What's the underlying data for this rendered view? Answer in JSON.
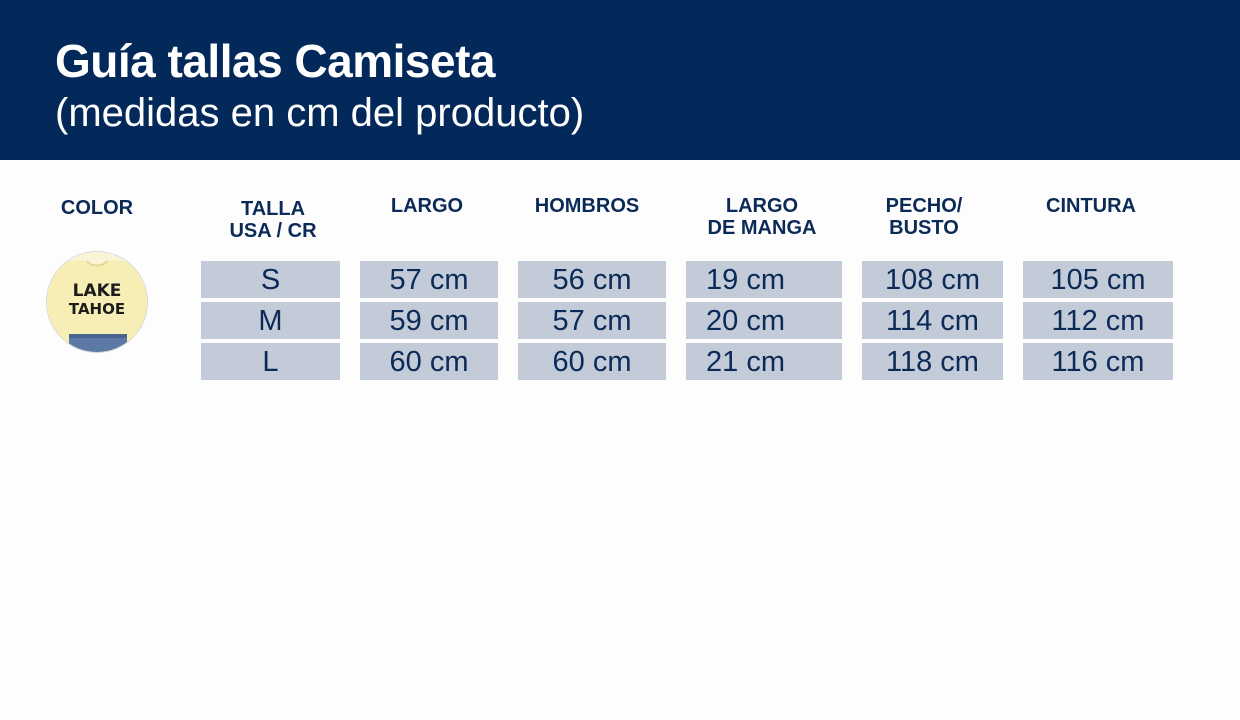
{
  "header": {
    "title": "Guía tallas Camiseta",
    "subtitle": "(medidas en cm del producto)"
  },
  "columns": {
    "color": "COLOR",
    "talla": [
      "TALLA",
      "USA / CR"
    ],
    "largo": "LARGO",
    "hombros": "HOMBROS",
    "largo_manga": [
      "LARGO",
      "DE MANGA"
    ],
    "pecho": [
      "PECHO/",
      "BUSTO"
    ],
    "cintura": "CINTURA"
  },
  "swatch": {
    "print_text": [
      "LAKE",
      "TAHOE"
    ],
    "colors": {
      "shirt": "#f6eeb4",
      "print": "#1c1c1c",
      "denim": "#5d7aa6"
    }
  },
  "rows": [
    {
      "talla": "S",
      "largo": "57 cm",
      "hombros": "56 cm",
      "largo_manga": "19 cm",
      "pecho": "108 cm",
      "cintura": "105 cm"
    },
    {
      "talla": "M",
      "largo": "59 cm",
      "hombros": "57 cm",
      "largo_manga": "20 cm",
      "pecho": "114 cm",
      "cintura": "112 cm"
    },
    {
      "talla": "L",
      "largo": "60 cm",
      "hombros": "60 cm",
      "largo_manga": "21 cm",
      "pecho": "118 cm",
      "cintura": "116 cm"
    }
  ],
  "colors": {
    "header_bg": "#03285a",
    "cell_bg": "#c2cbd7",
    "text_dark": "#0b2a57"
  }
}
